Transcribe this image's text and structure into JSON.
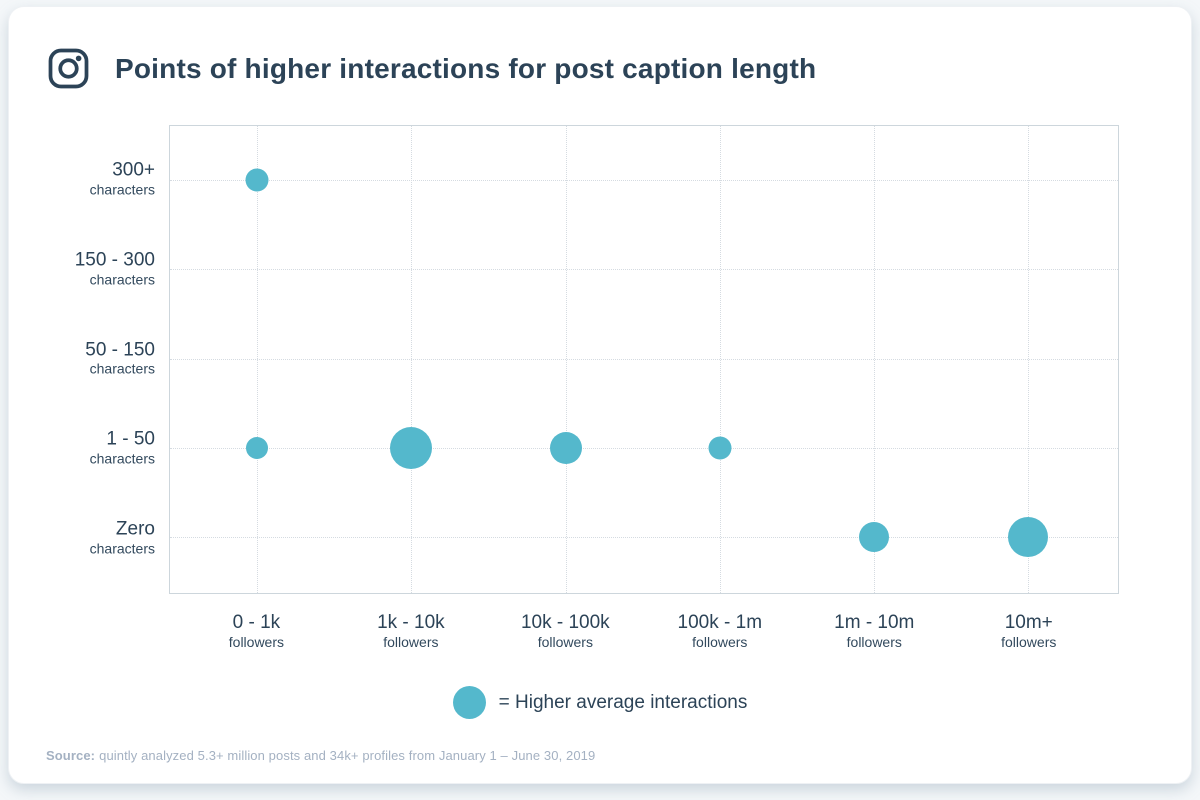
{
  "header": {
    "title": "Points of higher interactions for post caption length",
    "icon": "instagram-icon"
  },
  "colors": {
    "bubble": "#54b8cc",
    "title_text": "#2c4357",
    "grid": "#d5dbe1",
    "source_text": "#a4b1c2"
  },
  "chart_data": {
    "type": "scatter",
    "title": "Points of higher interactions for post caption length",
    "xlabel": "followers",
    "ylabel": "characters",
    "grid": true,
    "x_categories": [
      {
        "label": "0 - 1k",
        "sub": "followers"
      },
      {
        "label": "1k - 10k",
        "sub": "followers"
      },
      {
        "label": "10k - 100k",
        "sub": "followers"
      },
      {
        "label": "100k - 1m",
        "sub": "followers"
      },
      {
        "label": "1m - 10m",
        "sub": "followers"
      },
      {
        "label": "10m+",
        "sub": "followers"
      }
    ],
    "y_categories": [
      {
        "label": "300+",
        "sub": "characters"
      },
      {
        "label": "150 - 300",
        "sub": "characters"
      },
      {
        "label": "50 - 150",
        "sub": "characters"
      },
      {
        "label": "1 - 50",
        "sub": "characters"
      },
      {
        "label": "Zero",
        "sub": "characters"
      }
    ],
    "points": [
      {
        "x": "0 - 1k",
        "y": "300+",
        "col": 0,
        "row": 0,
        "size": 23
      },
      {
        "x": "0 - 1k",
        "y": "1 - 50",
        "col": 0,
        "row": 3,
        "size": 22
      },
      {
        "x": "1k - 10k",
        "y": "1 - 50",
        "col": 1,
        "row": 3,
        "size": 42
      },
      {
        "x": "10k - 100k",
        "y": "1 - 50",
        "col": 2,
        "row": 3,
        "size": 32
      },
      {
        "x": "100k - 1m",
        "y": "1 - 50",
        "col": 3,
        "row": 3,
        "size": 23
      },
      {
        "x": "1m - 10m",
        "y": "Zero",
        "col": 4,
        "row": 4,
        "size": 30
      },
      {
        "x": "10m+",
        "y": "Zero",
        "col": 5,
        "row": 4,
        "size": 40
      }
    ],
    "legend_position": "bottom-center"
  },
  "legend": {
    "label": "= Higher average interactions"
  },
  "footer": {
    "source_label": "Source:",
    "source_text": "quintly analyzed 5.3+ million posts and 34k+ profiles from January 1 – June 30, 2019"
  }
}
